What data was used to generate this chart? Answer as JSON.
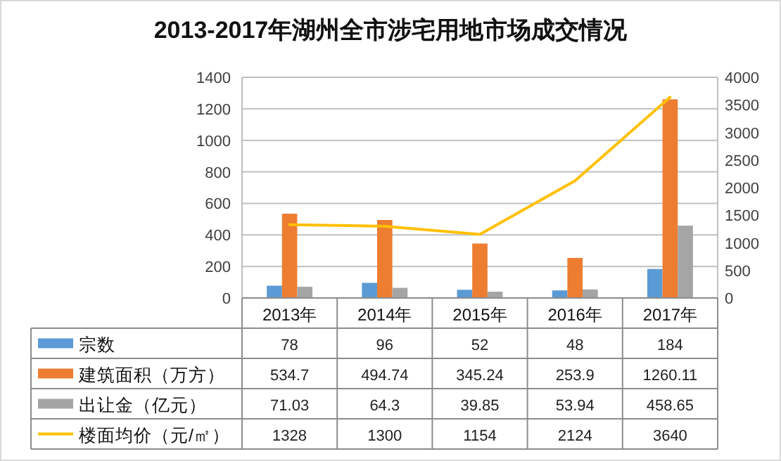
{
  "chart_data": {
    "type": "bar",
    "title": "2013-2017年湖州全市涉宅用地市场成交情况",
    "categories": [
      "2013年",
      "2014年",
      "2015年",
      "2016年",
      "2017年"
    ],
    "series": [
      {
        "name": "宗数",
        "color": "#5b9bd5",
        "values": [
          78,
          96,
          52,
          48,
          184
        ]
      },
      {
        "name": "建筑面积（万方）",
        "color": "#ed7d31",
        "values": [
          534.7,
          494.74,
          345.24,
          253.9,
          1260.11
        ]
      },
      {
        "name": "出让金（亿元）",
        "color": "#a5a5a5",
        "values": [
          71.03,
          64.3,
          39.85,
          53.94,
          458.65
        ]
      },
      {
        "name": "楼面均价（元/㎡）",
        "color": "#ffc000",
        "type": "line",
        "axis": "y2",
        "values": [
          1328,
          1300,
          1154,
          2124,
          3640
        ]
      }
    ],
    "ylim": [
      0,
      1400
    ],
    "yticks": [
      0,
      200,
      400,
      600,
      800,
      1000,
      1200,
      1400
    ],
    "y2lim": [
      0,
      4000
    ],
    "y2ticks": [
      0,
      500,
      1000,
      1500,
      2000,
      2500,
      3000,
      3500,
      4000
    ],
    "grid": "y",
    "legend": "bottom",
    "data_labels": true
  }
}
